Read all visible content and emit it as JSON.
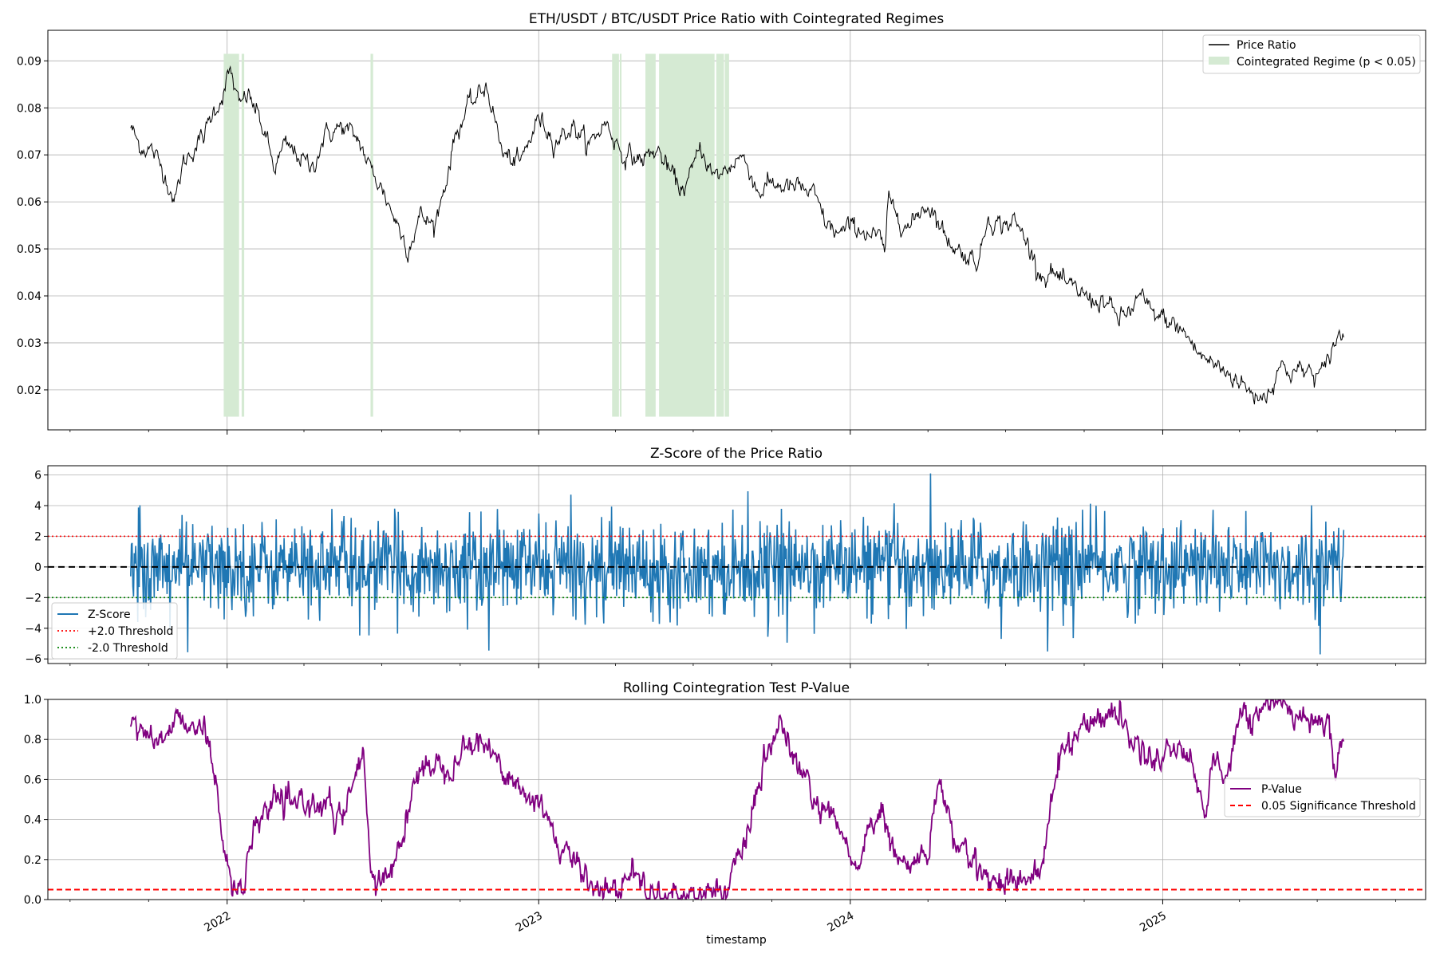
{
  "chart_data": [
    {
      "type": "line",
      "title": "ETH/USDT / BTC/USDT Price Ratio with Cointegrated Regimes",
      "xlabel": "",
      "ylabel": "",
      "x_range": [
        "2021-06-05",
        "2025-11-05"
      ],
      "ylim": [
        0.0115,
        0.0965
      ],
      "yticks": [
        0.02,
        0.03,
        0.04,
        0.05,
        0.06,
        0.07,
        0.08,
        0.09
      ],
      "grid": true,
      "legend_position": "upper right",
      "series": [
        {
          "name": "Price Ratio",
          "color": "#000000",
          "points": [
            [
              "2021-09-10",
              0.076
            ],
            [
              "2021-09-20",
              0.072
            ],
            [
              "2021-10-05",
              0.071
            ],
            [
              "2021-10-20",
              0.066
            ],
            [
              "2021-11-01",
              0.06
            ],
            [
              "2021-11-10",
              0.068
            ],
            [
              "2021-11-25",
              0.072
            ],
            [
              "2021-12-05",
              0.074
            ],
            [
              "2021-12-15",
              0.079
            ],
            [
              "2021-12-25",
              0.082
            ],
            [
              "2022-01-05",
              0.088
            ],
            [
              "2022-01-15",
              0.08
            ],
            [
              "2022-01-25",
              0.083
            ],
            [
              "2022-02-05",
              0.079
            ],
            [
              "2022-02-15",
              0.074
            ],
            [
              "2022-02-25",
              0.067
            ],
            [
              "2022-03-10",
              0.072
            ],
            [
              "2022-03-25",
              0.07
            ],
            [
              "2022-04-10",
              0.067
            ],
            [
              "2022-04-25",
              0.074
            ],
            [
              "2022-05-15",
              0.076
            ],
            [
              "2022-06-05",
              0.073
            ],
            [
              "2022-06-15",
              0.068
            ],
            [
              "2022-07-01",
              0.063
            ],
            [
              "2022-07-20",
              0.055
            ],
            [
              "2022-08-01",
              0.05
            ],
            [
              "2022-08-15",
              0.057
            ],
            [
              "2022-09-01",
              0.055
            ],
            [
              "2022-09-15",
              0.065
            ],
            [
              "2022-09-25",
              0.074
            ],
            [
              "2022-10-10",
              0.08
            ],
            [
              "2022-10-25",
              0.083
            ],
            [
              "2022-11-01",
              0.085
            ],
            [
              "2022-11-10",
              0.078
            ],
            [
              "2022-11-20",
              0.07
            ],
            [
              "2022-12-10",
              0.068
            ],
            [
              "2023-01-01",
              0.078
            ],
            [
              "2023-01-20",
              0.073
            ],
            [
              "2023-02-10",
              0.076
            ],
            [
              "2023-03-01",
              0.072
            ],
            [
              "2023-03-20",
              0.077
            ],
            [
              "2023-04-10",
              0.07
            ],
            [
              "2023-05-01",
              0.069
            ],
            [
              "2023-05-20",
              0.071
            ],
            [
              "2023-06-05",
              0.066
            ],
            [
              "2023-06-15",
              0.063
            ],
            [
              "2023-06-25",
              0.064
            ],
            [
              "2023-07-10",
              0.072
            ],
            [
              "2023-07-25",
              0.065
            ],
            [
              "2023-08-10",
              0.067
            ],
            [
              "2023-08-25",
              0.07
            ],
            [
              "2023-09-05",
              0.067
            ],
            [
              "2023-09-15",
              0.062
            ],
            [
              "2023-10-01",
              0.064
            ],
            [
              "2023-10-20",
              0.063
            ],
            [
              "2023-11-05",
              0.063
            ],
            [
              "2023-11-20",
              0.061
            ],
            [
              "2023-12-05",
              0.055
            ],
            [
              "2023-12-20",
              0.053
            ],
            [
              "2024-01-05",
              0.055
            ],
            [
              "2024-01-25",
              0.053
            ],
            [
              "2024-02-05",
              0.052
            ],
            [
              "2024-02-10",
              0.049
            ],
            [
              "2024-02-15",
              0.06
            ],
            [
              "2024-02-25",
              0.058
            ],
            [
              "2024-03-10",
              0.054
            ],
            [
              "2024-03-25",
              0.059
            ],
            [
              "2024-04-05",
              0.059
            ],
            [
              "2024-04-20",
              0.053
            ],
            [
              "2024-05-05",
              0.05
            ],
            [
              "2024-05-20",
              0.048
            ],
            [
              "2024-06-01",
              0.048
            ],
            [
              "2024-06-10",
              0.057
            ],
            [
              "2024-06-25",
              0.055
            ],
            [
              "2024-07-10",
              0.056
            ],
            [
              "2024-07-25",
              0.052
            ],
            [
              "2024-08-05",
              0.047
            ],
            [
              "2024-08-15",
              0.044
            ],
            [
              "2024-08-25",
              0.045
            ],
            [
              "2024-09-10",
              0.042
            ],
            [
              "2024-09-25",
              0.041
            ],
            [
              "2024-10-10",
              0.039
            ],
            [
              "2024-10-25",
              0.039
            ],
            [
              "2024-11-10",
              0.035
            ],
            [
              "2024-11-25",
              0.037
            ],
            [
              "2024-12-05",
              0.04
            ],
            [
              "2024-12-20",
              0.036
            ],
            [
              "2025-01-05",
              0.035
            ],
            [
              "2025-01-20",
              0.033
            ],
            [
              "2025-02-01",
              0.031
            ],
            [
              "2025-02-10",
              0.028
            ],
            [
              "2025-02-25",
              0.026
            ],
            [
              "2025-03-15",
              0.024
            ],
            [
              "2025-04-01",
              0.022
            ],
            [
              "2025-04-15",
              0.019
            ],
            [
              "2025-05-01",
              0.019
            ],
            [
              "2025-05-08",
              0.02
            ],
            [
              "2025-05-15",
              0.025
            ],
            [
              "2025-06-01",
              0.024
            ],
            [
              "2025-06-20",
              0.024
            ],
            [
              "2025-07-01",
              0.023
            ],
            [
              "2025-07-10",
              0.024
            ],
            [
              "2025-07-20",
              0.03
            ],
            [
              "2025-08-01",
              0.032
            ]
          ]
        }
      ],
      "regimes": {
        "name": "Cointegrated Regime (p < 0.05)",
        "color": "#d5ead3",
        "spans": [
          [
            "2021-12-28",
            "2022-01-15"
          ],
          [
            "2022-01-18",
            "2022-01-21"
          ],
          [
            "2022-06-18",
            "2022-06-21"
          ],
          [
            "2023-03-28",
            "2023-04-05"
          ],
          [
            "2023-04-06",
            "2023-04-08"
          ],
          [
            "2023-05-06",
            "2023-05-18"
          ],
          [
            "2023-05-22",
            "2023-07-26"
          ],
          [
            "2023-07-28",
            "2023-08-06"
          ],
          [
            "2023-08-07",
            "2023-08-12"
          ]
        ]
      }
    },
    {
      "type": "line",
      "title": "Z-Score of the Price Ratio",
      "xlabel": "",
      "ylabel": "",
      "x_range": [
        "2021-06-05",
        "2025-11-05"
      ],
      "ylim": [
        -6.3,
        6.6
      ],
      "yticks": [
        -6,
        -4,
        -2,
        0,
        2,
        4,
        6
      ],
      "grid": true,
      "legend_position": "lower left",
      "series": [
        {
          "name": "Z-Score",
          "color": "#1f77b4",
          "summary": {
            "start": "2021-09-10",
            "end": "2025-08-01",
            "min": -5.7,
            "max": 6.1,
            "typical_range": [
              -2.5,
              2.5
            ]
          }
        },
        {
          "name": "+2.0 Threshold",
          "color": "#ff0000",
          "y": 2.0
        },
        {
          "name": "-2.0 Threshold",
          "color": "#008000",
          "y": -2.0
        }
      ],
      "zero_line": 0
    },
    {
      "type": "line",
      "title": "Rolling Cointegration Test P-Value",
      "xlabel": "timestamp",
      "ylabel": "",
      "x_range": [
        "2021-06-05",
        "2025-11-05"
      ],
      "ylim": [
        0.0,
        1.0
      ],
      "yticks": [
        0.0,
        0.2,
        0.4,
        0.6,
        0.8,
        1.0
      ],
      "xticks": [
        "2022",
        "2023",
        "2024",
        "2025"
      ],
      "grid": true,
      "legend_position": "center right",
      "series": [
        {
          "name": "P-Value",
          "color": "#800080",
          "points": [
            [
              "2021-09-10",
              0.85
            ],
            [
              "2021-09-25",
              0.88
            ],
            [
              "2021-10-05",
              0.78
            ],
            [
              "2021-10-20",
              0.82
            ],
            [
              "2021-11-05",
              0.9
            ],
            [
              "2021-11-20",
              0.89
            ],
            [
              "2021-12-05",
              0.88
            ],
            [
              "2021-12-12",
              0.7
            ],
            [
              "2021-12-20",
              0.55
            ],
            [
              "2021-12-28",
              0.3
            ],
            [
              "2022-01-05",
              0.1
            ],
            [
              "2022-01-12",
              0.02
            ],
            [
              "2022-01-20",
              0.05
            ],
            [
              "2022-01-28",
              0.25
            ],
            [
              "2022-02-10",
              0.42
            ],
            [
              "2022-02-25",
              0.5
            ],
            [
              "2022-03-15",
              0.45
            ],
            [
              "2022-04-01",
              0.5
            ],
            [
              "2022-04-15",
              0.48
            ],
            [
              "2022-05-01",
              0.45
            ],
            [
              "2022-05-15",
              0.4
            ],
            [
              "2022-06-01",
              0.6
            ],
            [
              "2022-06-10",
              0.75
            ],
            [
              "2022-06-18",
              0.1
            ],
            [
              "2022-06-25",
              0.05
            ],
            [
              "2022-07-10",
              0.15
            ],
            [
              "2022-07-25",
              0.3
            ],
            [
              "2022-08-10",
              0.6
            ],
            [
              "2022-08-25",
              0.7
            ],
            [
              "2022-09-15",
              0.65
            ],
            [
              "2022-10-01",
              0.75
            ],
            [
              "2022-10-20",
              0.8
            ],
            [
              "2022-11-10",
              0.72
            ],
            [
              "2022-12-01",
              0.6
            ],
            [
              "2022-12-20",
              0.5
            ],
            [
              "2023-01-10",
              0.45
            ],
            [
              "2023-01-25",
              0.25
            ],
            [
              "2023-02-10",
              0.2
            ],
            [
              "2023-03-01",
              0.1
            ],
            [
              "2023-03-15",
              0.07
            ],
            [
              "2023-04-01",
              0.03
            ],
            [
              "2023-04-20",
              0.15
            ],
            [
              "2023-05-10",
              0.03
            ],
            [
              "2023-06-01",
              0.02
            ],
            [
              "2023-07-01",
              0.03
            ],
            [
              "2023-07-20",
              0.04
            ],
            [
              "2023-08-10",
              0.06
            ],
            [
              "2023-08-25",
              0.2
            ],
            [
              "2023-09-10",
              0.45
            ],
            [
              "2023-09-25",
              0.7
            ],
            [
              "2023-10-10",
              0.9
            ],
            [
              "2023-10-25",
              0.7
            ],
            [
              "2023-11-10",
              0.6
            ],
            [
              "2023-11-25",
              0.45
            ],
            [
              "2023-12-10",
              0.4
            ],
            [
              "2023-12-25",
              0.3
            ],
            [
              "2024-01-05",
              0.15
            ],
            [
              "2024-01-20",
              0.3
            ],
            [
              "2024-02-05",
              0.45
            ],
            [
              "2024-02-20",
              0.25
            ],
            [
              "2024-03-10",
              0.15
            ],
            [
              "2024-04-01",
              0.25
            ],
            [
              "2024-04-15",
              0.6
            ],
            [
              "2024-05-01",
              0.3
            ],
            [
              "2024-05-20",
              0.2
            ],
            [
              "2024-06-05",
              0.15
            ],
            [
              "2024-06-15",
              0.08
            ],
            [
              "2024-07-01",
              0.11
            ],
            [
              "2024-07-20",
              0.1
            ],
            [
              "2024-08-10",
              0.12
            ],
            [
              "2024-08-25",
              0.5
            ],
            [
              "2024-09-05",
              0.75
            ],
            [
              "2024-09-25",
              0.85
            ],
            [
              "2024-10-15",
              0.9
            ],
            [
              "2024-11-05",
              0.95
            ],
            [
              "2024-11-20",
              0.85
            ],
            [
              "2024-12-05",
              0.75
            ],
            [
              "2024-12-20",
              0.7
            ],
            [
              "2025-01-10",
              0.75
            ],
            [
              "2025-01-25",
              0.78
            ],
            [
              "2025-02-10",
              0.6
            ],
            [
              "2025-02-20",
              0.4
            ],
            [
              "2025-03-01",
              0.7
            ],
            [
              "2025-03-15",
              0.6
            ],
            [
              "2025-04-01",
              0.95
            ],
            [
              "2025-04-15",
              0.87
            ],
            [
              "2025-05-01",
              0.99
            ],
            [
              "2025-05-20",
              0.98
            ],
            [
              "2025-06-05",
              0.92
            ],
            [
              "2025-06-25",
              0.91
            ],
            [
              "2025-07-15",
              0.89
            ],
            [
              "2025-07-22",
              0.6
            ],
            [
              "2025-07-28",
              0.8
            ],
            [
              "2025-08-01",
              0.86
            ]
          ]
        },
        {
          "name": "0.05 Significance Threshold",
          "color": "#ff0000",
          "y": 0.05
        }
      ]
    }
  ]
}
